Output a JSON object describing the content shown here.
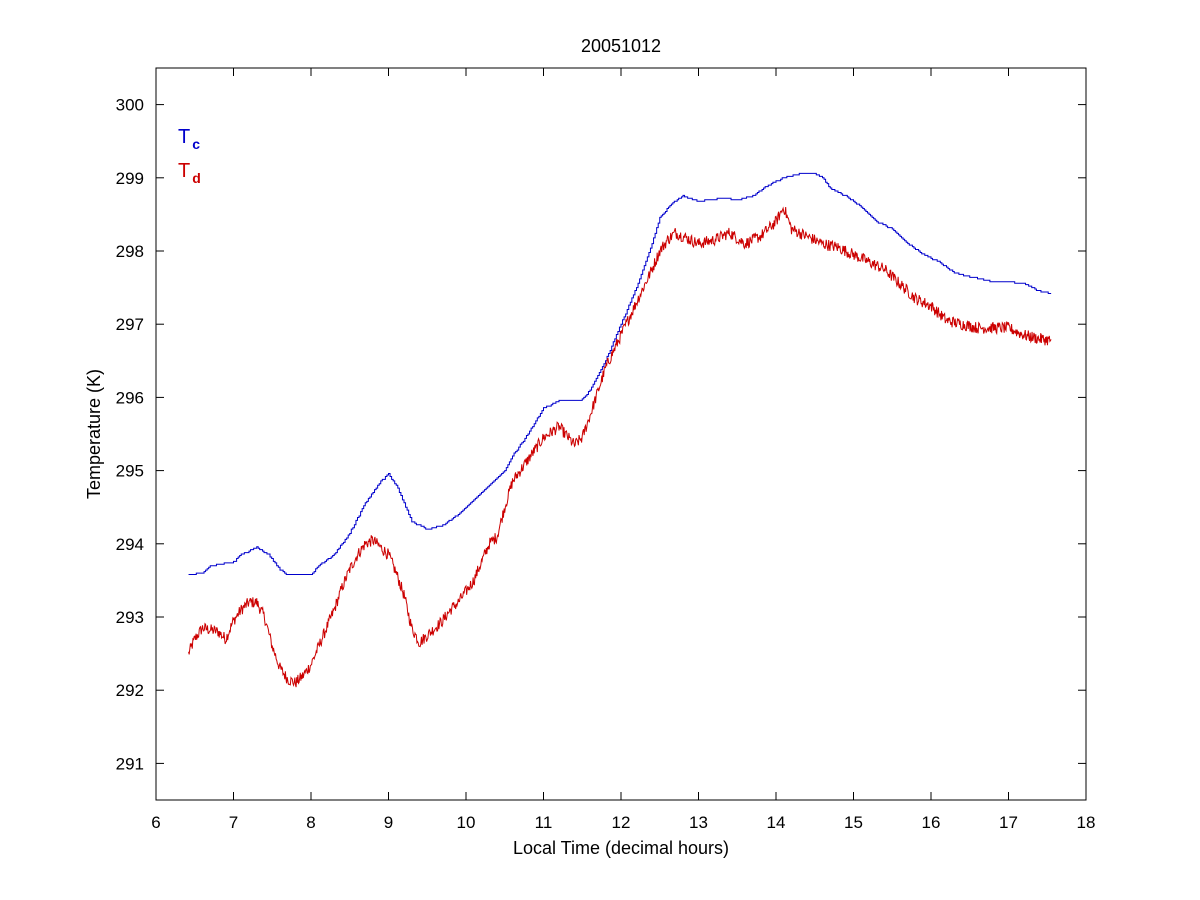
{
  "chart_data": {
    "type": "line",
    "title": "20051012",
    "xlabel": "Local Time (decimal hours)",
    "ylabel": "Temperature (K)",
    "xlim": [
      6,
      18
    ],
    "ylim": [
      290.5,
      300.5
    ],
    "xticks": [
      6,
      7,
      8,
      9,
      10,
      11,
      12,
      13,
      14,
      15,
      16,
      17,
      18
    ],
    "yticks": [
      291,
      292,
      293,
      294,
      295,
      296,
      297,
      298,
      299,
      300
    ],
    "grid": false,
    "legend_position": "top-left",
    "series": [
      {
        "name": "T",
        "subscript": "c",
        "color": "#0000cc",
        "x": [
          6.42,
          6.6,
          6.7,
          7.0,
          7.1,
          7.3,
          7.45,
          7.6,
          7.7,
          8.0,
          8.1,
          8.3,
          8.5,
          8.7,
          8.9,
          9.0,
          9.1,
          9.2,
          9.3,
          9.5,
          9.7,
          9.9,
          10.1,
          10.3,
          10.5,
          10.6,
          10.8,
          11.0,
          11.2,
          11.5,
          11.6,
          11.8,
          12.0,
          12.2,
          12.4,
          12.5,
          12.65,
          12.8,
          13.0,
          13.3,
          13.5,
          13.7,
          13.9,
          14.1,
          14.3,
          14.5,
          14.6,
          14.7,
          14.9,
          15.1,
          15.3,
          15.5,
          15.7,
          15.9,
          16.1,
          16.3,
          16.5,
          16.7,
          16.8,
          17.0,
          17.2,
          17.4,
          17.55
        ],
        "y": [
          293.58,
          293.6,
          293.7,
          293.75,
          293.85,
          293.95,
          293.85,
          293.65,
          293.57,
          293.58,
          293.7,
          293.85,
          294.15,
          294.55,
          294.85,
          294.95,
          294.8,
          294.55,
          294.3,
          294.2,
          294.25,
          294.4,
          294.6,
          294.8,
          295.0,
          295.2,
          295.5,
          295.85,
          295.95,
          295.97,
          296.1,
          296.5,
          297.0,
          297.5,
          298.1,
          298.45,
          298.65,
          298.75,
          298.68,
          298.72,
          298.7,
          298.75,
          298.9,
          299.0,
          299.05,
          299.05,
          299.0,
          298.85,
          298.75,
          298.6,
          298.4,
          298.3,
          298.1,
          297.95,
          297.85,
          297.7,
          297.65,
          297.6,
          297.58,
          297.58,
          297.55,
          297.45,
          297.42
        ]
      },
      {
        "name": "T",
        "subscript": "d",
        "color": "#cc0000",
        "x": [
          6.42,
          6.5,
          6.6,
          6.8,
          6.9,
          7.0,
          7.1,
          7.2,
          7.3,
          7.4,
          7.5,
          7.6,
          7.7,
          7.8,
          7.9,
          8.0,
          8.1,
          8.2,
          8.3,
          8.4,
          8.5,
          8.6,
          8.7,
          8.8,
          8.9,
          9.0,
          9.1,
          9.2,
          9.3,
          9.4,
          9.5,
          9.6,
          9.7,
          9.8,
          9.9,
          10.0,
          10.1,
          10.2,
          10.3,
          10.4,
          10.5,
          10.6,
          10.8,
          11.0,
          11.2,
          11.4,
          11.5,
          11.6,
          11.8,
          12.0,
          12.2,
          12.4,
          12.5,
          12.6,
          12.7,
          12.8,
          13.0,
          13.2,
          13.4,
          13.6,
          13.8,
          14.0,
          14.1,
          14.2,
          14.4,
          14.6,
          14.8,
          15.0,
          15.2,
          15.4,
          15.6,
          15.8,
          16.0,
          16.2,
          16.4,
          16.6,
          16.8,
          17.0,
          17.2,
          17.4,
          17.55
        ],
        "y": [
          292.5,
          292.7,
          292.85,
          292.8,
          292.7,
          292.95,
          293.1,
          293.2,
          293.2,
          293.0,
          292.6,
          292.3,
          292.15,
          292.1,
          292.2,
          292.35,
          292.6,
          292.85,
          293.1,
          293.4,
          293.65,
          293.85,
          294.0,
          294.05,
          293.95,
          293.85,
          293.6,
          293.3,
          292.85,
          292.65,
          292.75,
          292.85,
          292.95,
          293.1,
          293.2,
          293.35,
          293.5,
          293.75,
          294.0,
          294.1,
          294.5,
          294.85,
          295.15,
          295.45,
          295.6,
          295.35,
          295.45,
          295.75,
          296.4,
          296.85,
          297.3,
          297.75,
          298.0,
          298.15,
          298.25,
          298.2,
          298.1,
          298.15,
          298.25,
          298.1,
          298.2,
          298.4,
          298.6,
          298.3,
          298.2,
          298.1,
          298.05,
          297.95,
          297.85,
          297.75,
          297.55,
          297.35,
          297.25,
          297.05,
          297.0,
          296.95,
          296.95,
          296.95,
          296.85,
          296.8,
          296.78
        ]
      }
    ]
  }
}
